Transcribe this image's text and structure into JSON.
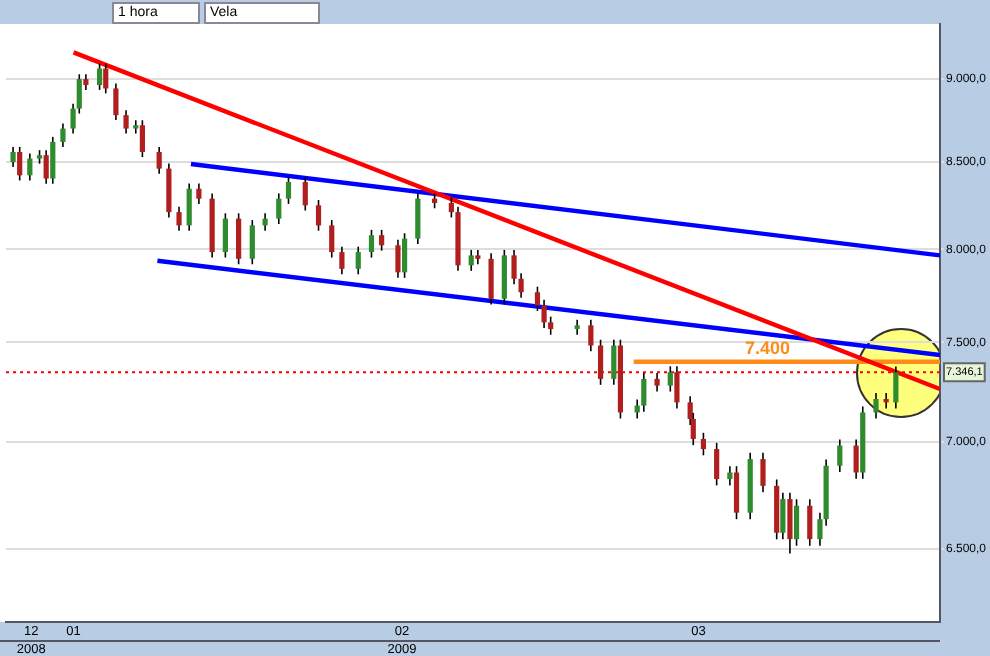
{
  "chart_data": {
    "type": "candlestick",
    "log": true,
    "grid": "y",
    "legend": false,
    "marker": "none",
    "annotations": [
      "1 hora",
      "Vela",
      {
        "text": "7.400",
        "x": "2009-03-07T12:00",
        "y": 7400
      },
      "2008",
      "2009"
    ],
    "x": [
      "2008-12-26T07:00",
      "2008-12-26T22:00",
      "2008-12-27T21:00",
      "2008-12-28T19:00",
      "2008-12-29T10:00",
      "2008-12-30T01:00",
      "2008-12-31T00:00",
      "2008-12-31T23:00",
      "2009-01-01T13:00",
      "2009-01-02T04:00",
      "2009-01-03T11:00",
      "2009-01-04T01:00",
      "2009-01-05T00:00",
      "2009-01-05T23:00",
      "2009-01-06T21:00",
      "2009-01-07T12:00",
      "2009-01-09T02:00",
      "2009-01-10T00:00",
      "2009-01-10T23:00",
      "2009-01-11T22:00",
      "2009-01-12T20:00",
      "2009-01-14T02:00",
      "2009-01-15T08:00",
      "2009-01-16T14:00",
      "2009-01-17T21:00",
      "2009-01-19T02:00",
      "2009-01-20T09:00",
      "2009-01-21T07:00",
      "2009-01-22T21:00",
      "2009-01-24T03:00",
      "2009-01-25T09:00",
      "2009-01-26T08:00",
      "2009-01-27T21:00",
      "2009-01-29T03:00",
      "2009-01-30T02:00",
      "2009-01-31T15:00",
      "2009-02-01T06:00",
      "2009-02-02T12:00",
      "2009-02-04T02:00",
      "2009-02-05T16:00",
      "2009-02-06T07:00",
      "2009-02-07T13:00",
      "2009-02-08T04:00",
      "2009-02-09T10:00",
      "2009-02-10T16:00",
      "2009-02-11T14:00",
      "2009-02-12T06:00",
      "2009-02-13T19:00",
      "2009-02-14T10:00",
      "2009-02-15T01:00",
      "2009-02-17T13:00",
      "2009-02-18T20:00",
      "2009-02-19T18:00",
      "2009-02-21T00:00",
      "2009-02-21T15:00",
      "2009-02-23T05:00",
      "2009-02-23T20:00",
      "2009-02-25T02:00",
      "2009-02-26T08:00",
      "2009-02-26T23:00",
      "2009-02-28T05:00",
      "2009-02-28T12:00",
      "2009-03-01T11:00",
      "2009-03-02T17:00",
      "2009-03-03T23:00",
      "2009-03-04T14:00",
      "2009-03-05T21:00",
      "2009-03-07T02:00",
      "2009-03-08T09:00",
      "2009-03-08T23:00",
      "2009-03-09T15:00",
      "2009-03-10T06:00",
      "2009-03-11T12:00",
      "2009-03-12T11:00",
      "2009-03-13T01:00",
      "2009-03-14T08:00",
      "2009-03-15T21:00",
      "2009-03-16T12:00",
      "2009-03-17T18:00",
      "2009-03-18T17:00",
      "2009-03-19T15:00"
    ],
    "ohlc": [
      [
        8498,
        8587,
        8468,
        8557
      ],
      [
        8557,
        8587,
        8390,
        8420
      ],
      [
        8420,
        8548,
        8390,
        8518
      ],
      [
        8518,
        8568,
        8488,
        8538
      ],
      [
        8538,
        8568,
        8371,
        8401
      ],
      [
        8401,
        8647,
        8371,
        8617
      ],
      [
        8617,
        8727,
        8587,
        8697
      ],
      [
        8697,
        8848,
        8667,
        8818
      ],
      [
        8818,
        9030,
        8788,
        9000
      ],
      [
        9000,
        9030,
        8933,
        8963
      ],
      [
        8963,
        9096,
        8933,
        9066
      ],
      [
        9066,
        9096,
        8912,
        8942
      ],
      [
        8942,
        8972,
        8748,
        8778
      ],
      [
        8778,
        8808,
        8667,
        8697
      ],
      [
        8697,
        8747,
        8667,
        8717
      ],
      [
        8717,
        8747,
        8527,
        8557
      ],
      [
        8557,
        8587,
        8429,
        8459
      ],
      [
        8459,
        8489,
        8178,
        8208
      ],
      [
        8208,
        8238,
        8103,
        8133
      ],
      [
        8133,
        8372,
        8103,
        8342
      ],
      [
        8342,
        8372,
        8255,
        8285
      ],
      [
        8285,
        8315,
        7954,
        7984
      ],
      [
        7984,
        8201,
        7954,
        8171
      ],
      [
        8171,
        8201,
        7917,
        7947
      ],
      [
        7947,
        8163,
        7917,
        8133
      ],
      [
        8133,
        8201,
        8103,
        8171
      ],
      [
        8171,
        8315,
        8141,
        8285
      ],
      [
        8285,
        8411,
        8255,
        8381
      ],
      [
        8381,
        8411,
        8217,
        8247
      ],
      [
        8247,
        8277,
        8103,
        8133
      ],
      [
        8133,
        8163,
        7954,
        7984
      ],
      [
        7984,
        8014,
        7862,
        7892
      ],
      [
        7892,
        8014,
        7862,
        7984
      ],
      [
        7984,
        8108,
        7954,
        8078
      ],
      [
        8078,
        8108,
        7992,
        8022
      ],
      [
        8022,
        8052,
        7843,
        7873
      ],
      [
        7873,
        8089,
        7843,
        8059
      ],
      [
        8059,
        8315,
        8029,
        8285
      ],
      [
        8285,
        8315,
        8230,
        8260
      ],
      [
        8260,
        8290,
        8178,
        8208
      ],
      [
        8208,
        8238,
        7881,
        7911
      ],
      [
        7911,
        7996,
        7881,
        7966
      ],
      [
        7966,
        7996,
        7917,
        7947
      ],
      [
        7947,
        7977,
        7700,
        7730
      ],
      [
        7730,
        7996,
        7700,
        7966
      ],
      [
        7966,
        7996,
        7808,
        7838
      ],
      [
        7838,
        7868,
        7735,
        7765
      ],
      [
        7765,
        7795,
        7665,
        7695
      ],
      [
        7695,
        7725,
        7575,
        7605
      ],
      [
        7605,
        7635,
        7540,
        7570
      ],
      [
        7570,
        7619,
        7540,
        7589
      ],
      [
        7589,
        7619,
        7454,
        7484
      ],
      [
        7484,
        7514,
        7283,
        7313
      ],
      [
        7313,
        7514,
        7283,
        7484
      ],
      [
        7484,
        7514,
        7115,
        7145
      ],
      [
        7145,
        7209,
        7115,
        7179
      ],
      [
        7179,
        7343,
        7149,
        7313
      ],
      [
        7313,
        7343,
        7249,
        7279
      ],
      [
        7279,
        7377,
        7249,
        7347
      ],
      [
        7347,
        7377,
        7165,
        7195
      ],
      [
        7195,
        7225,
        7083,
        7113
      ],
      [
        7113,
        7143,
        6985,
        7015
      ],
      [
        7015,
        7045,
        6936,
        6966
      ],
      [
        6966,
        6996,
        6793,
        6823
      ],
      [
        6823,
        6884,
        6793,
        6854
      ],
      [
        6854,
        6884,
        6636,
        6666
      ],
      [
        6666,
        6948,
        6636,
        6918
      ],
      [
        6918,
        6948,
        6761,
        6791
      ],
      [
        6791,
        6821,
        6544,
        6574
      ],
      [
        6574,
        6759,
        6544,
        6729
      ],
      [
        6729,
        6759,
        6480,
        6545
      ],
      [
        6545,
        6728,
        6515,
        6698
      ],
      [
        6698,
        6728,
        6515,
        6545
      ],
      [
        6545,
        6666,
        6515,
        6636
      ],
      [
        6636,
        6916,
        6606,
        6886
      ],
      [
        6886,
        7013,
        6856,
        6983
      ],
      [
        6983,
        7013,
        6824,
        6854
      ],
      [
        6854,
        7175,
        6824,
        7145
      ],
      [
        7145,
        7242,
        7115,
        7212
      ],
      [
        7212,
        7242,
        7165,
        7195
      ],
      [
        7195,
        7376,
        7165,
        7346
      ]
    ],
    "colors": [
      "#2e8b2e",
      "#b01e1e",
      "#2e8b2e",
      "#2e8b2e",
      "#b01e1e",
      "#2e8b2e",
      "#2e8b2e",
      "#2e8b2e",
      "#2e8b2e",
      "#b01e1e",
      "#2e8b2e",
      "#b01e1e",
      "#b01e1e",
      "#b01e1e",
      "#2e8b2e",
      "#b01e1e",
      "#b01e1e",
      "#b01e1e",
      "#b01e1e",
      "#2e8b2e",
      "#b01e1e",
      "#b01e1e",
      "#2e8b2e",
      "#b01e1e",
      "#2e8b2e",
      "#2e8b2e",
      "#2e8b2e",
      "#2e8b2e",
      "#b01e1e",
      "#b01e1e",
      "#b01e1e",
      "#b01e1e",
      "#2e8b2e",
      "#2e8b2e",
      "#b01e1e",
      "#b01e1e",
      "#2e8b2e",
      "#2e8b2e",
      "#b01e1e",
      "#b01e1e",
      "#b01e1e",
      "#2e8b2e",
      "#b01e1e",
      "#b01e1e",
      "#2e8b2e",
      "#b01e1e",
      "#b01e1e",
      "#b01e1e",
      "#b01e1e",
      "#b01e1e",
      "#2e8b2e",
      "#b01e1e",
      "#b01e1e",
      "#2e8b2e",
      "#b01e1e",
      "#2e8b2e",
      "#2e8b2e",
      "#b01e1e",
      "#2e8b2e",
      "#b01e1e",
      "#b01e1e",
      "#b01e1e",
      "#b01e1e",
      "#b01e1e",
      "#2e8b2e",
      "#b01e1e",
      "#2e8b2e",
      "#b01e1e",
      "#b01e1e",
      "#2e8b2e",
      "#b01e1e",
      "#2e8b2e",
      "#b01e1e",
      "#2e8b2e",
      "#2e8b2e",
      "#2e8b2e",
      "#b01e1e",
      "#2e8b2e",
      "#2e8b2e",
      "#b01e1e",
      "#2e8b2e"
    ],
    "series": [
      {
        "type": "line",
        "color": "#ff0000",
        "x": [
          "2009-01-01T00:00",
          "2009-03-23T19:00"
        ],
        "values": [
          9168,
          7262
        ]
      },
      {
        "type": "line",
        "color": "#0000ff",
        "x": [
          "2009-01-12T02:00",
          "2009-03-23T19:00"
        ],
        "values": [
          8486,
          7966
        ]
      },
      {
        "type": "line",
        "color": "#0000ff",
        "x": [
          "2009-01-08T22:00",
          "2009-03-23T19:00"
        ],
        "values": [
          7936,
          7435
        ]
      },
      {
        "type": "line",
        "color": "#ff8c1a",
        "x": [
          "2009-02-22T21:00",
          "2009-03-23T19:00"
        ],
        "values": [
          7400,
          7400
        ]
      }
    ],
    "ref_lines": [
      {
        "axis": "y",
        "value": 7346.1,
        "label": "7.346,1",
        "color": "#ff0000",
        "line_style": "dotted"
      }
    ],
    "xlim": [
      "2008-12-25T15:00",
      "2009-03-23T19:00"
    ],
    "xticks": [
      {
        "value": "2008-12-28",
        "label": "12"
      },
      {
        "value": "2009-01-01",
        "label": "01"
      },
      {
        "value": "2009-02-01",
        "label": "02"
      },
      {
        "value": "2009-03-01",
        "label": "03"
      }
    ],
    "ylim": [
      6180,
      9350
    ],
    "yticks": [
      {
        "value": 6500,
        "label": "6.500,0"
      },
      {
        "value": 7000,
        "label": "7.000,0"
      },
      {
        "value": 7500,
        "label": "7.500,0"
      },
      {
        "value": 8000,
        "label": "8.000,0"
      },
      {
        "value": 8500,
        "label": "8.500,0"
      },
      {
        "value": 9000,
        "label": "9.000,0"
      }
    ]
  }
}
